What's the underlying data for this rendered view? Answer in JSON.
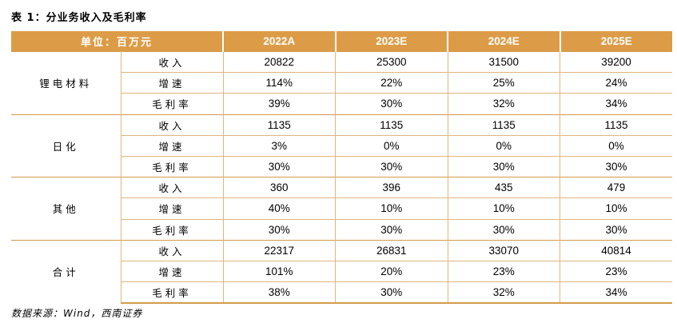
{
  "title": "表 1：分业务收入及毛利率",
  "table": {
    "unit_header": "单位：百万元",
    "year_headers": [
      "2022A",
      "2023E",
      "2024E",
      "2025E"
    ],
    "groups": [
      {
        "name": "锂电材料",
        "rows": [
          {
            "metric": "收入",
            "values": [
              "20822",
              "25300",
              "31500",
              "39200"
            ]
          },
          {
            "metric": "增速",
            "values": [
              "114%",
              "22%",
              "25%",
              "24%"
            ]
          },
          {
            "metric": "毛利率",
            "values": [
              "39%",
              "30%",
              "32%",
              "34%"
            ]
          }
        ]
      },
      {
        "name": "日化",
        "rows": [
          {
            "metric": "收入",
            "values": [
              "1135",
              "1135",
              "1135",
              "1135"
            ]
          },
          {
            "metric": "增速",
            "values": [
              "3%",
              "0%",
              "0%",
              "0%"
            ]
          },
          {
            "metric": "毛利率",
            "values": [
              "30%",
              "30%",
              "30%",
              "30%"
            ]
          }
        ]
      },
      {
        "name": "其他",
        "rows": [
          {
            "metric": "收入",
            "values": [
              "360",
              "396",
              "435",
              "479"
            ]
          },
          {
            "metric": "增速",
            "values": [
              "40%",
              "10%",
              "10%",
              "10%"
            ]
          },
          {
            "metric": "毛利率",
            "values": [
              "30%",
              "30%",
              "30%",
              "30%"
            ]
          }
        ]
      },
      {
        "name": "合计",
        "rows": [
          {
            "metric": "收入",
            "values": [
              "22317",
              "26831",
              "33070",
              "40814"
            ]
          },
          {
            "metric": "增速",
            "values": [
              "101%",
              "20%",
              "23%",
              "23%"
            ]
          },
          {
            "metric": "毛利率",
            "values": [
              "38%",
              "30%",
              "32%",
              "34%"
            ]
          }
        ]
      }
    ]
  },
  "source": "数据来源：Wind，西南证券",
  "colors": {
    "header_bg": "#dc9c47",
    "header_text": "#ffffff",
    "rule": "#e1b57c"
  }
}
